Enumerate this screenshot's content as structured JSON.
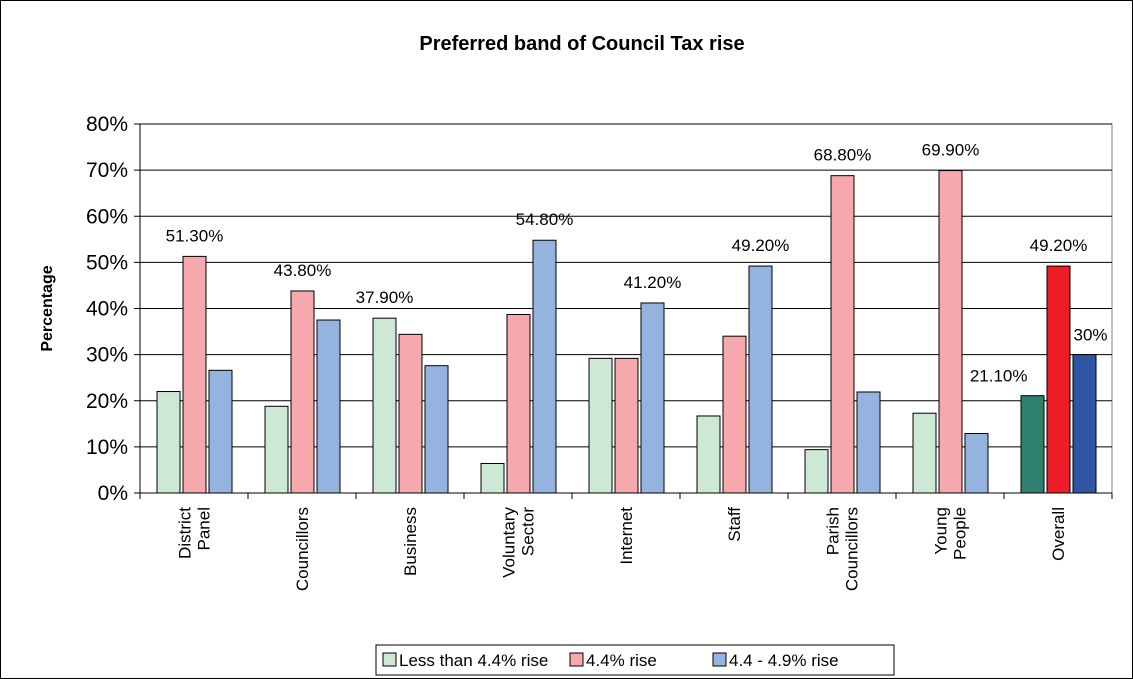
{
  "chart_data": {
    "type": "bar",
    "title": "Preferred band of Council Tax rise",
    "ylabel": "Percentage",
    "xlabel": "",
    "ylim": [
      0,
      80
    ],
    "y_ticks": [
      "0%",
      "10%",
      "20%",
      "30%",
      "40%",
      "50%",
      "60%",
      "70%",
      "80%"
    ],
    "grid": true,
    "legend_position": "bottom",
    "categories": [
      [
        "District",
        "Panel"
      ],
      [
        "Councillors"
      ],
      [
        "Business"
      ],
      [
        "Voluntary",
        "Sector"
      ],
      [
        "Internet"
      ],
      [
        "Staff"
      ],
      [
        "Parish",
        "Councillors"
      ],
      [
        "Young",
        "People"
      ],
      [
        "Overall"
      ]
    ],
    "series": [
      {
        "name": "Less than 4.4% rise",
        "values": [
          22.0,
          18.8,
          37.9,
          6.4,
          29.2,
          16.7,
          9.4,
          17.3,
          21.1
        ]
      },
      {
        "name": "4.4% rise",
        "values": [
          51.3,
          43.8,
          34.4,
          38.7,
          29.2,
          34.0,
          68.8,
          69.9,
          49.2
        ]
      },
      {
        "name": "4.4 - 4.9% rise",
        "values": [
          26.6,
          37.5,
          27.6,
          54.8,
          41.2,
          49.2,
          21.9,
          12.9,
          30.0
        ]
      }
    ],
    "series_colors": [
      "#cde8d4",
      "#f5a9ad",
      "#94b3de"
    ],
    "overall_colors": [
      "#2e7f6d",
      "#ee1c26",
      "#2e54a3"
    ],
    "data_labels": [
      {
        "category_index": 0,
        "series_index": 1,
        "text": "51.30%"
      },
      {
        "category_index": 1,
        "series_index": 1,
        "text": "43.80%"
      },
      {
        "category_index": 2,
        "series_index": 0,
        "text": "37.90%"
      },
      {
        "category_index": 3,
        "series_index": 2,
        "text": "54.80%"
      },
      {
        "category_index": 4,
        "series_index": 2,
        "text": "41.20%"
      },
      {
        "category_index": 5,
        "series_index": 2,
        "text": "49.20%"
      },
      {
        "category_index": 6,
        "series_index": 1,
        "text": "68.80%"
      },
      {
        "category_index": 7,
        "series_index": 1,
        "text": "69.90%"
      },
      {
        "category_index": 8,
        "series_index": 1,
        "text": "49.20%"
      },
      {
        "category_index": 8,
        "series_index": 0,
        "text": "21.10%"
      },
      {
        "category_index": 8,
        "series_index": 2,
        "text": "30%"
      }
    ],
    "plot_background": "#ffffff",
    "grid_color": "#000000"
  }
}
